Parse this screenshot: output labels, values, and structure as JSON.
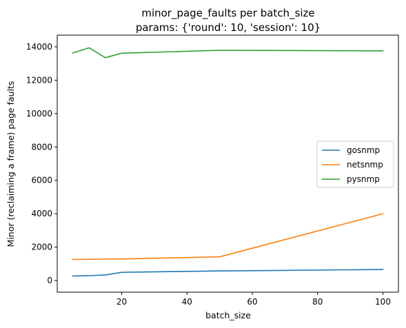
{
  "chart_data": {
    "type": "line",
    "title": "minor_page_faults per batch_size",
    "subtitle": "params: {'round': 10, 'session': 10}",
    "xlabel": "batch_size",
    "ylabel": "Minor (reclaiming a frame) page faults",
    "xlim": [
      0.25,
      104.75
    ],
    "ylim": [
      -700,
      14700
    ],
    "xticks": [
      20,
      40,
      60,
      80,
      100
    ],
    "yticks": [
      0,
      2000,
      4000,
      6000,
      8000,
      10000,
      12000,
      14000
    ],
    "grid": false,
    "legend_position": "center-right",
    "series": [
      {
        "name": "gosnmp",
        "color": "#1f77b4",
        "x": [
          5,
          10,
          15,
          20,
          50,
          100
        ],
        "y": [
          270,
          290,
          330,
          490,
          570,
          660
        ]
      },
      {
        "name": "netsnmp",
        "color": "#ff7f0e",
        "x": [
          5,
          10,
          15,
          20,
          50,
          100
        ],
        "y": [
          1260,
          1270,
          1280,
          1290,
          1420,
          4000
        ]
      },
      {
        "name": "pysnmp",
        "color": "#2ca02c",
        "x": [
          5,
          10,
          15,
          20,
          50,
          100
        ],
        "y": [
          13630,
          13940,
          13350,
          13620,
          13790,
          13760
        ]
      }
    ]
  }
}
